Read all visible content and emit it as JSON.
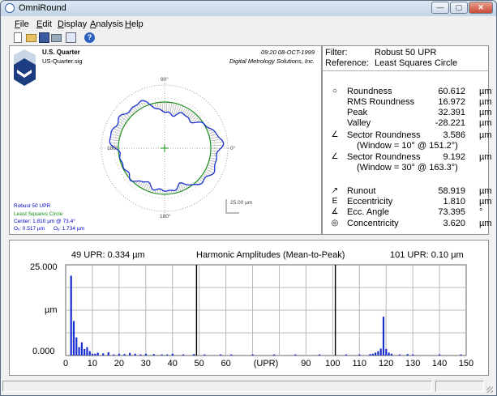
{
  "window": {
    "title": "OmniRound",
    "buttons": {
      "minimize": "—",
      "maximize": "▢",
      "close": "✕"
    }
  },
  "menu": {
    "items": [
      {
        "key": "F",
        "rest": "ile"
      },
      {
        "key": "E",
        "rest": "dit"
      },
      {
        "key": "D",
        "rest": "isplay"
      },
      {
        "key": "A",
        "rest": "nalysis"
      },
      {
        "key": "H",
        "rest": "elp"
      }
    ]
  },
  "toolbar": {
    "icons": [
      "new-file-icon",
      "open-folder-icon",
      "save-icon",
      "print-icon",
      "copy-icon",
      "help-icon"
    ]
  },
  "polar_panel": {
    "part_name": "U.S. Quarter",
    "file_name": "US-Quarter.sig",
    "timestamp": "09:20 08-OCT-1999",
    "company": "Digital Metrology Solutions, Inc.",
    "angles": {
      "top": "90°",
      "bottom": "180°",
      "left": "180°",
      "right": "0°"
    },
    "scale": "25.00 µm",
    "legend": {
      "filter": "Robust 50 UPR",
      "reference": "Least Squares Circle",
      "center": "Center: 1.810 µm @ 73.4°",
      "ox": "Oₓ: 0.517 µm",
      "oy": "Oᵧ: 1.734 µm"
    }
  },
  "results_panel": {
    "filter_label": "Filter:",
    "filter_value": "Robust 50 UPR",
    "reference_label": "Reference:",
    "reference_value": "Least Squares Circle",
    "rows": [
      {
        "icon": "○",
        "label": "Roundness",
        "value": "60.612",
        "unit": "µm"
      },
      {
        "icon": "",
        "label": "RMS Roundness",
        "value": "16.972",
        "unit": "µm"
      },
      {
        "icon": "",
        "label": "Peak",
        "value": "32.391",
        "unit": "µm"
      },
      {
        "icon": "",
        "label": "Valley",
        "value": "-28.221",
        "unit": "µm"
      },
      {
        "icon": "∠",
        "label": "Sector Roundness",
        "value": "3.586",
        "unit": "µm"
      },
      {
        "sub": "(Window = 10°  @ 151.2°)"
      },
      {
        "icon": "∠",
        "label": "Sector Roundness",
        "value": "9.192",
        "unit": "µm"
      },
      {
        "sub": "(Window = 30°  @ 163.3°)"
      },
      {
        "icon": "↗",
        "label": "Runout",
        "value": "58.919",
        "unit": "µm"
      },
      {
        "icon": "E",
        "label": "Eccentricity",
        "value": "1.810",
        "unit": "µm"
      },
      {
        "icon": "∡",
        "label": "Ecc. Angle",
        "value": "73.395",
        "unit": "°"
      },
      {
        "icon": "◎",
        "label": "Concentricity",
        "value": "3.620",
        "unit": "µm"
      }
    ]
  },
  "harmonic_panel": {
    "left_label": "49 UPR:  0.334 µm",
    "title": "Harmonic Amplitudes (Mean-to-Peak)",
    "right_label": "101 UPR:  0.10 µm",
    "y_top": "25.000",
    "y_unit": "µm",
    "y_bottom": "0.000",
    "x_axis_unit": "(UPR)",
    "x_ticks": [
      "0",
      "10",
      "20",
      "30",
      "40",
      "50",
      "60",
      "(UPR)",
      "90",
      "100",
      "110",
      "120",
      "130",
      "140",
      "150"
    ]
  },
  "chart_data": {
    "type": "bar",
    "title": "Harmonic Amplitudes (Mean-to-Peak)",
    "xlabel": "(UPR)",
    "ylabel": "µm",
    "xlim": [
      0,
      150
    ],
    "ylim": [
      0,
      25
    ],
    "grid": true,
    "markers": [
      49,
      101
    ],
    "x": [
      2,
      3,
      4,
      5,
      6,
      7,
      8,
      9,
      10,
      11,
      12,
      14,
      16,
      18,
      20,
      22,
      24,
      26,
      28,
      30,
      33,
      36,
      38,
      40,
      44,
      48,
      52,
      58,
      62,
      70,
      78,
      86,
      95,
      105,
      110,
      114,
      115,
      116,
      117,
      118,
      119,
      120,
      121,
      122,
      125,
      128,
      130,
      140,
      148
    ],
    "values": [
      22.0,
      9.5,
      5.0,
      2.3,
      3.6,
      1.8,
      2.3,
      1.2,
      0.5,
      0.5,
      0.8,
      0.6,
      0.9,
      0.3,
      0.5,
      0.4,
      0.7,
      0.5,
      0.3,
      0.5,
      0.4,
      0.3,
      0.3,
      0.5,
      0.3,
      0.4,
      0.3,
      0.3,
      0.3,
      0.3,
      0.3,
      0.3,
      0.3,
      0.3,
      0.3,
      0.4,
      0.5,
      0.8,
      1.2,
      1.9,
      10.7,
      1.8,
      0.8,
      0.5,
      0.3,
      0.4,
      0.3,
      0.3,
      0.3
    ]
  }
}
